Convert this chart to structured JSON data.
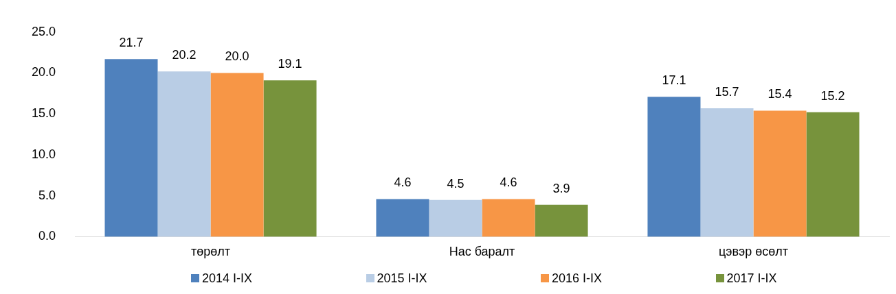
{
  "chart_data": {
    "type": "bar",
    "categories": [
      "төрөлт",
      "Нас баралт",
      "цэвэр өсөлт"
    ],
    "series": [
      {
        "name": "2014 I-IX",
        "color": "#4f81bd",
        "values": [
          21.7,
          4.6,
          17.1
        ],
        "value_labels": [
          "21.7",
          "4.6",
          "17.1"
        ]
      },
      {
        "name": "2015 I-IX",
        "color": "#b9cde5",
        "values": [
          20.2,
          4.5,
          15.7
        ],
        "value_labels": [
          "20.2",
          "4.5",
          "15.7"
        ]
      },
      {
        "name": "2016 I-IX",
        "color": "#f79646",
        "values": [
          20.0,
          4.6,
          15.4
        ],
        "value_labels": [
          "20.0",
          "4.6",
          "15.4"
        ]
      },
      {
        "name": "2017 I-IX",
        "color": "#77933c",
        "values": [
          19.1,
          3.9,
          15.2
        ],
        "value_labels": [
          "19.1",
          "3.9",
          "15.2"
        ]
      }
    ],
    "ylim": [
      0,
      25
    ],
    "yticks": [
      {
        "value": 0,
        "label": "0.0"
      },
      {
        "value": 5,
        "label": "5.0"
      },
      {
        "value": 10,
        "label": "10.0"
      },
      {
        "value": 15,
        "label": "15.0"
      },
      {
        "value": 20,
        "label": "20.0"
      },
      {
        "value": 25,
        "label": "25.0"
      }
    ],
    "grid": false,
    "legend": "bottom"
  }
}
